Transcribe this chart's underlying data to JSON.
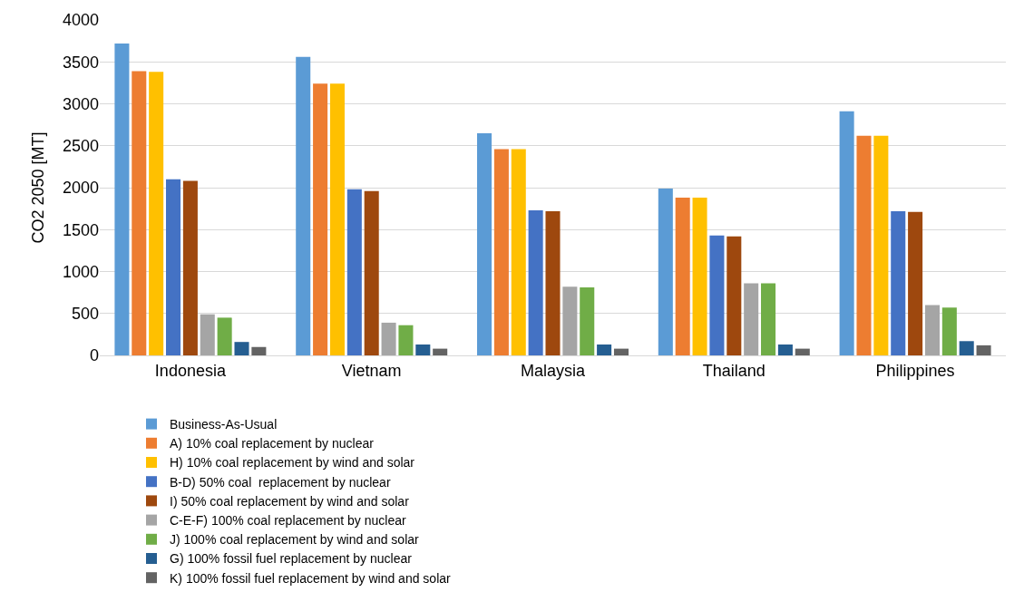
{
  "chart_data": {
    "type": "bar",
    "ylabel": "CO2 2050 [MT]",
    "categories": [
      "Indonesia",
      "Vietnam",
      "Malaysia",
      "Thailand",
      "Philippines"
    ],
    "ylim": [
      0,
      4000
    ],
    "yticks": [
      0,
      500,
      1000,
      1500,
      2000,
      2500,
      3000,
      3500,
      4000
    ],
    "grid": "y",
    "legend": "bottom",
    "series": [
      {
        "name": "Business-As-Usual",
        "color": "#5b9bd5",
        "values": [
          3720,
          3560,
          2650,
          1990,
          2910
        ]
      },
      {
        "name": "A) 10% coal replacement by nuclear",
        "color": "#ed7d31",
        "values": [
          3390,
          3240,
          2460,
          1880,
          2620
        ]
      },
      {
        "name": "H) 10% coal replacement by wind and solar",
        "color": "#ffc000",
        "values": [
          3380,
          3240,
          2460,
          1880,
          2620
        ]
      },
      {
        "name": "B-D) 50% coal  replacement by nuclear",
        "color": "#4472c4",
        "values": [
          2100,
          1980,
          1730,
          1430,
          1720
        ]
      },
      {
        "name": "I) 50% coal replacement by wind and solar",
        "color": "#9e480e",
        "values": [
          2080,
          1960,
          1720,
          1420,
          1710
        ]
      },
      {
        "name": "C-E-F) 100% coal replacement by nuclear",
        "color": "#a5a5a5",
        "values": [
          490,
          390,
          820,
          860,
          600
        ]
      },
      {
        "name": "J) 100% coal replacement by wind and solar",
        "color": "#70ad47",
        "values": [
          450,
          360,
          810,
          860,
          570
        ]
      },
      {
        "name": "G) 100% fossil fuel replacement by nuclear",
        "color": "#255e91",
        "values": [
          160,
          130,
          130,
          130,
          170
        ]
      },
      {
        "name": "K) 100% fossil fuel replacement by wind and solar",
        "color": "#636363",
        "values": [
          100,
          80,
          80,
          80,
          120
        ]
      }
    ]
  }
}
